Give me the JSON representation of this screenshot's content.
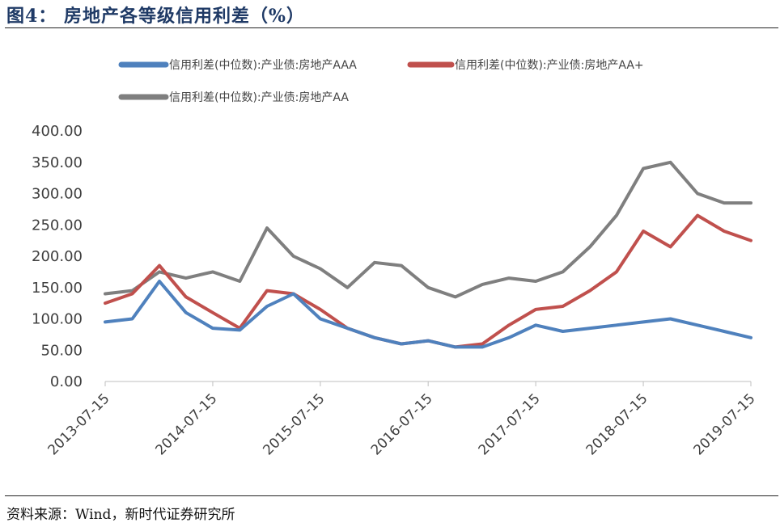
{
  "header": {
    "title": "图4： 房地产各等级信用利差（%）"
  },
  "footer": {
    "source": "资料来源：Wind，新时代证券研究所"
  },
  "colors": {
    "aaa": "#4f81bd",
    "aa_plus": "#c0504d",
    "aa": "#7f7f7f",
    "title": "#1f3a66"
  },
  "chart_data": {
    "type": "line",
    "title": "",
    "xlabel": "",
    "ylabel": "",
    "ylim": [
      0,
      400
    ],
    "yticks": [
      "0.00",
      "50.00",
      "100.00",
      "150.00",
      "200.00",
      "250.00",
      "300.00",
      "350.00",
      "400.00"
    ],
    "xticks": [
      "2013-07-15",
      "2014-07-15",
      "2015-07-15",
      "2016-07-15",
      "2017-07-15",
      "2018-07-15",
      "2019-07-15"
    ],
    "grid": false,
    "legend_position": "top",
    "x": [
      "2013-07-15",
      "2013-10-15",
      "2014-01-15",
      "2014-04-15",
      "2014-07-15",
      "2014-10-15",
      "2015-01-15",
      "2015-04-15",
      "2015-07-15",
      "2015-10-15",
      "2016-01-15",
      "2016-04-15",
      "2016-07-15",
      "2016-10-15",
      "2017-01-15",
      "2017-04-15",
      "2017-07-15",
      "2017-10-15",
      "2018-01-15",
      "2018-04-15",
      "2018-07-15",
      "2018-10-15",
      "2019-01-15",
      "2019-04-15",
      "2019-07-15"
    ],
    "series": [
      {
        "name": "信用利差(中位数):产业债:房地产AAA",
        "values": [
          95,
          100,
          160,
          110,
          85,
          82,
          120,
          140,
          100,
          85,
          70,
          60,
          65,
          55,
          55,
          70,
          90,
          80,
          85,
          90,
          95,
          100,
          90,
          80,
          70
        ]
      },
      {
        "name": "信用利差(中位数):产业债:房地产AA+",
        "values": [
          125,
          140,
          185,
          135,
          110,
          85,
          145,
          140,
          115,
          85,
          70,
          60,
          65,
          55,
          60,
          90,
          115,
          120,
          145,
          175,
          240,
          215,
          265,
          240,
          225
        ]
      },
      {
        "name": "信用利差(中位数):产业债:房地产AA",
        "values": [
          140,
          145,
          175,
          165,
          175,
          160,
          245,
          200,
          180,
          150,
          190,
          185,
          150,
          135,
          155,
          165,
          160,
          175,
          215,
          265,
          340,
          350,
          300,
          285,
          285
        ]
      }
    ]
  }
}
